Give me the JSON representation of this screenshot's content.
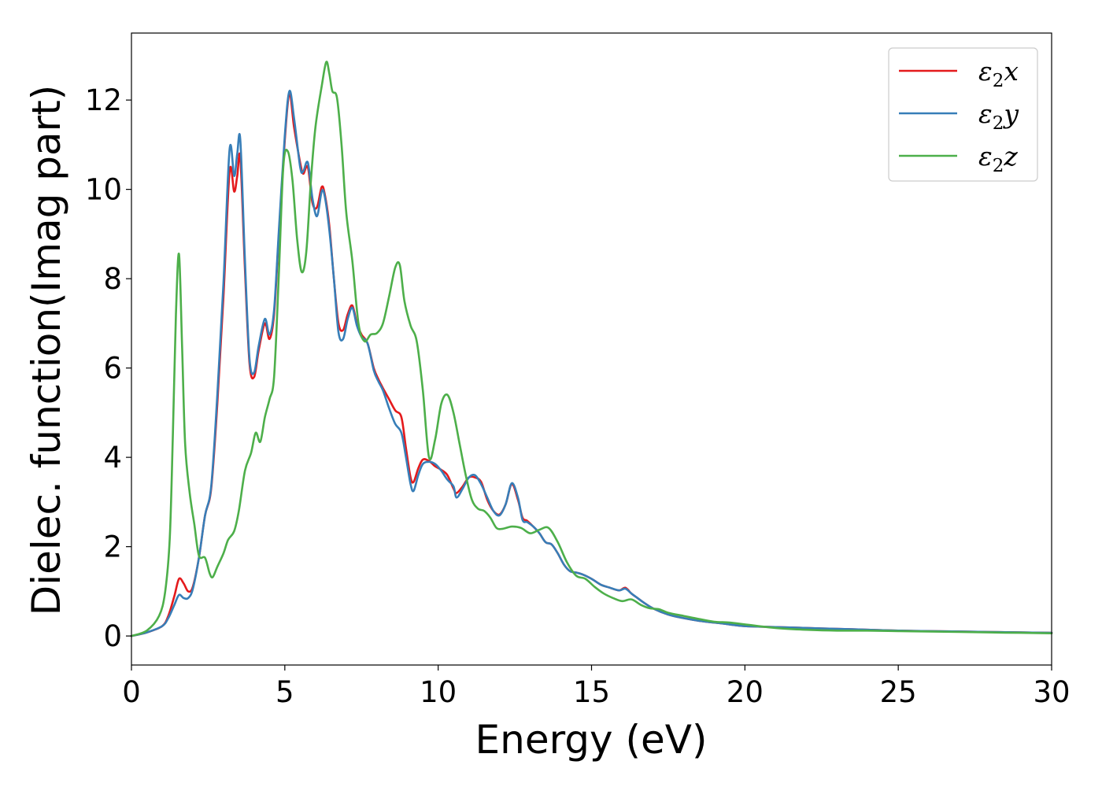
{
  "chart_data": {
    "type": "line",
    "title": "",
    "xlabel": "Energy (eV)",
    "ylabel": "Dielec. function(Imag part)",
    "xlim": [
      0,
      30
    ],
    "ylim": [
      -0.65,
      13.5
    ],
    "xticks": [
      0,
      5,
      10,
      15,
      20,
      25,
      30
    ],
    "yticks": [
      0,
      2,
      4,
      6,
      8,
      10,
      12
    ],
    "grid": false,
    "legend_position": "top-right",
    "series": [
      {
        "name": "ε2x",
        "legend_main": "ε",
        "legend_sub": "2",
        "legend_suffix": "x",
        "color": "#e41a1c",
        "x": [
          0,
          0.5,
          1.0,
          1.2,
          1.4,
          1.55,
          1.7,
          1.85,
          2.0,
          2.2,
          2.4,
          2.6,
          2.8,
          3.0,
          3.2,
          3.35,
          3.45,
          3.55,
          3.7,
          3.85,
          4.0,
          4.15,
          4.35,
          4.5,
          4.65,
          4.8,
          5.0,
          5.15,
          5.3,
          5.5,
          5.6,
          5.75,
          5.9,
          6.05,
          6.2,
          6.3,
          6.45,
          6.6,
          6.75,
          6.9,
          7.05,
          7.2,
          7.35,
          7.5,
          7.7,
          7.9,
          8.05,
          8.2,
          8.4,
          8.6,
          8.8,
          8.95,
          9.1,
          9.2,
          9.35,
          9.5,
          9.7,
          9.9,
          10.1,
          10.3,
          10.5,
          10.6,
          10.8,
          11.0,
          11.2,
          11.4,
          11.6,
          11.8,
          12.0,
          12.2,
          12.4,
          12.6,
          12.75,
          12.9,
          13.1,
          13.3,
          13.5,
          13.7,
          13.9,
          14.1,
          14.3,
          14.5,
          14.7,
          15.0,
          15.3,
          15.6,
          15.9,
          16.1,
          16.3,
          16.5,
          16.7,
          17.0,
          17.5,
          18.0,
          18.5,
          19.0,
          19.5,
          20.0,
          21.0,
          22.0,
          23.0,
          24.0,
          25.0,
          26.0,
          27.0,
          28.0,
          29.0,
          30.0
        ],
        "y": [
          0,
          0.08,
          0.22,
          0.45,
          0.9,
          1.28,
          1.18,
          1.0,
          1.1,
          1.75,
          2.7,
          3.3,
          5.2,
          7.6,
          10.4,
          9.95,
          10.3,
          10.7,
          8.2,
          6.1,
          5.8,
          6.4,
          7.0,
          6.65,
          7.2,
          8.9,
          11.1,
          12.15,
          11.4,
          10.6,
          10.35,
          10.5,
          9.7,
          9.6,
          10.05,
          9.9,
          9.2,
          8.0,
          7.0,
          6.85,
          7.2,
          7.4,
          7.0,
          6.75,
          6.55,
          6.0,
          5.75,
          5.55,
          5.3,
          5.05,
          4.9,
          4.2,
          3.55,
          3.45,
          3.75,
          3.95,
          3.92,
          3.8,
          3.72,
          3.6,
          3.3,
          3.2,
          3.35,
          3.55,
          3.55,
          3.45,
          3.05,
          2.8,
          2.72,
          2.95,
          3.4,
          3.05,
          2.65,
          2.58,
          2.45,
          2.3,
          2.1,
          2.05,
          1.85,
          1.6,
          1.45,
          1.42,
          1.38,
          1.28,
          1.15,
          1.08,
          1.02,
          1.08,
          0.95,
          0.85,
          0.75,
          0.62,
          0.48,
          0.4,
          0.34,
          0.3,
          0.26,
          0.22,
          0.2,
          0.18,
          0.16,
          0.14,
          0.12,
          0.11,
          0.1,
          0.09,
          0.08,
          0.07
        ]
      },
      {
        "name": "ε2y",
        "legend_main": "ε",
        "legend_sub": "2",
        "legend_suffix": "y",
        "color": "#377eb8",
        "x": [
          0,
          0.5,
          1.0,
          1.2,
          1.4,
          1.55,
          1.7,
          1.85,
          2.0,
          2.2,
          2.4,
          2.6,
          2.8,
          3.0,
          3.2,
          3.35,
          3.45,
          3.55,
          3.7,
          3.85,
          4.0,
          4.15,
          4.35,
          4.5,
          4.65,
          4.8,
          5.0,
          5.15,
          5.3,
          5.5,
          5.6,
          5.75,
          5.9,
          6.05,
          6.2,
          6.3,
          6.45,
          6.6,
          6.75,
          6.9,
          7.05,
          7.2,
          7.35,
          7.5,
          7.7,
          7.9,
          8.05,
          8.2,
          8.4,
          8.6,
          8.8,
          8.95,
          9.1,
          9.2,
          9.35,
          9.5,
          9.7,
          9.9,
          10.1,
          10.3,
          10.5,
          10.6,
          10.8,
          11.0,
          11.2,
          11.4,
          11.6,
          11.8,
          12.0,
          12.2,
          12.4,
          12.6,
          12.75,
          12.9,
          13.1,
          13.3,
          13.5,
          13.7,
          13.9,
          14.1,
          14.3,
          14.5,
          14.7,
          15.0,
          15.3,
          15.6,
          15.9,
          16.1,
          16.3,
          16.5,
          16.7,
          17.0,
          17.5,
          18.0,
          18.5,
          19.0,
          19.5,
          20.0,
          21.0,
          22.0,
          23.0,
          24.0,
          25.0,
          26.0,
          27.0,
          28.0,
          29.0,
          30.0
        ],
        "y": [
          0,
          0.08,
          0.22,
          0.4,
          0.7,
          0.92,
          0.85,
          0.85,
          1.05,
          1.75,
          2.7,
          3.35,
          5.4,
          7.9,
          10.9,
          10.3,
          10.8,
          11.1,
          8.4,
          6.2,
          5.9,
          6.5,
          7.1,
          6.75,
          7.3,
          9.0,
          11.2,
          12.2,
          11.6,
          10.5,
          10.4,
          10.6,
          9.8,
          9.4,
          9.95,
          9.85,
          9.1,
          8.0,
          6.8,
          6.65,
          7.1,
          7.35,
          6.95,
          6.7,
          6.55,
          5.95,
          5.7,
          5.5,
          5.1,
          4.75,
          4.55,
          4.0,
          3.4,
          3.25,
          3.6,
          3.85,
          3.9,
          3.85,
          3.7,
          3.5,
          3.35,
          3.1,
          3.3,
          3.55,
          3.6,
          3.4,
          3.1,
          2.8,
          2.7,
          2.95,
          3.42,
          3.1,
          2.6,
          2.55,
          2.45,
          2.3,
          2.1,
          2.05,
          1.85,
          1.6,
          1.45,
          1.42,
          1.38,
          1.28,
          1.15,
          1.08,
          1.02,
          1.06,
          0.95,
          0.85,
          0.75,
          0.62,
          0.48,
          0.4,
          0.34,
          0.3,
          0.26,
          0.22,
          0.2,
          0.18,
          0.16,
          0.14,
          0.12,
          0.11,
          0.1,
          0.09,
          0.08,
          0.07
        ]
      },
      {
        "name": "ε2z",
        "legend_main": "ε",
        "legend_sub": "2",
        "legend_suffix": "z",
        "color": "#4daf4a",
        "x": [
          0,
          0.5,
          0.9,
          1.1,
          1.25,
          1.35,
          1.45,
          1.55,
          1.65,
          1.75,
          1.9,
          2.05,
          2.2,
          2.4,
          2.55,
          2.65,
          2.8,
          3.0,
          3.15,
          3.35,
          3.5,
          3.7,
          3.9,
          4.05,
          4.2,
          4.35,
          4.5,
          4.65,
          4.8,
          4.95,
          5.1,
          5.25,
          5.4,
          5.55,
          5.7,
          5.85,
          6.0,
          6.2,
          6.35,
          6.45,
          6.55,
          6.7,
          6.85,
          7.0,
          7.2,
          7.4,
          7.6,
          7.8,
          8.0,
          8.2,
          8.4,
          8.6,
          8.75,
          8.9,
          9.1,
          9.3,
          9.5,
          9.7,
          9.9,
          10.1,
          10.3,
          10.5,
          10.7,
          10.9,
          11.1,
          11.3,
          11.5,
          11.7,
          11.9,
          12.1,
          12.4,
          12.7,
          13.0,
          13.3,
          13.6,
          13.9,
          14.2,
          14.5,
          14.8,
          15.1,
          15.4,
          15.7,
          16.0,
          16.3,
          16.6,
          16.9,
          17.2,
          17.5,
          18.0,
          18.5,
          19.0,
          19.5,
          20.0,
          21.0,
          22.0,
          23.0,
          24.0,
          25.0,
          26.0,
          27.0,
          28.0,
          29.0,
          30.0
        ],
        "y": [
          0,
          0.12,
          0.45,
          1.0,
          2.2,
          4.5,
          7.2,
          8.55,
          6.5,
          4.3,
          3.2,
          2.5,
          1.8,
          1.75,
          1.4,
          1.32,
          1.55,
          1.85,
          2.15,
          2.35,
          2.8,
          3.7,
          4.1,
          4.55,
          4.35,
          4.9,
          5.3,
          5.8,
          8.0,
          10.5,
          10.85,
          10.2,
          8.9,
          8.15,
          8.6,
          10.2,
          11.4,
          12.3,
          12.85,
          12.6,
          12.2,
          12.05,
          11.0,
          9.5,
          8.4,
          7.0,
          6.6,
          6.75,
          6.78,
          7.0,
          7.6,
          8.25,
          8.3,
          7.5,
          6.95,
          6.6,
          5.5,
          4.0,
          4.4,
          5.2,
          5.4,
          5.0,
          4.3,
          3.6,
          3.05,
          2.85,
          2.8,
          2.65,
          2.42,
          2.4,
          2.45,
          2.42,
          2.3,
          2.38,
          2.42,
          2.1,
          1.65,
          1.35,
          1.28,
          1.1,
          0.95,
          0.85,
          0.78,
          0.82,
          0.7,
          0.62,
          0.6,
          0.52,
          0.45,
          0.38,
          0.32,
          0.3,
          0.26,
          0.18,
          0.14,
          0.12,
          0.12,
          0.11,
          0.1,
          0.09,
          0.08,
          0.07,
          0.06
        ]
      }
    ]
  }
}
